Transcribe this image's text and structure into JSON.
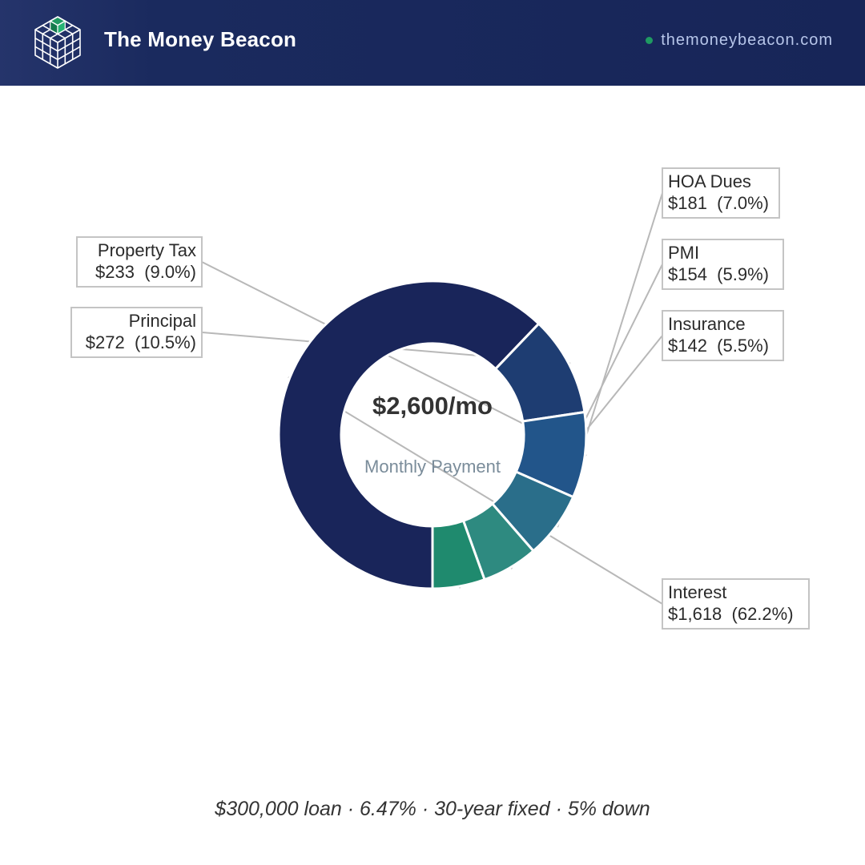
{
  "header": {
    "brand": "The Money Beacon",
    "site": "themoneybeacon.com",
    "logo_icon": "cube-grid-icon",
    "colors": {
      "background": "#172558",
      "accent": "#1f9a62",
      "site_text": "#b7c6ea"
    }
  },
  "chart_data": {
    "type": "pie",
    "variant": "donut",
    "start_angle_deg": 90,
    "center_value": "$2,600/mo",
    "center_label": "Monthly Payment",
    "slices": [
      {
        "name": "Interest",
        "amount": "$1,618",
        "percent": 62.2,
        "percent_label": "(62.2%)",
        "color": "#19255a",
        "label_side": "right"
      },
      {
        "name": "Principal",
        "amount": "$272",
        "percent": 10.5,
        "percent_label": "(10.5%)",
        "color": "#1e3d72",
        "label_side": "left"
      },
      {
        "name": "Property Tax",
        "amount": "$233",
        "percent": 9.0,
        "percent_label": "(9.0%)",
        "color": "#22558a",
        "label_side": "left"
      },
      {
        "name": "HOA Dues",
        "amount": "$181",
        "percent": 7.0,
        "percent_label": "(7.0%)",
        "color": "#2a6e8a",
        "label_side": "right"
      },
      {
        "name": "PMI",
        "amount": "$154",
        "percent": 5.9,
        "percent_label": "(5.9%)",
        "color": "#2e8a80",
        "label_side": "right"
      },
      {
        "name": "Insurance",
        "amount": "$142",
        "percent": 5.5,
        "percent_label": "(5.5%)",
        "color": "#1f8a6e",
        "label_side": "right"
      }
    ]
  },
  "footer": {
    "caption": "$300,000 loan · 6.47% · 30-year fixed · 5% down"
  }
}
